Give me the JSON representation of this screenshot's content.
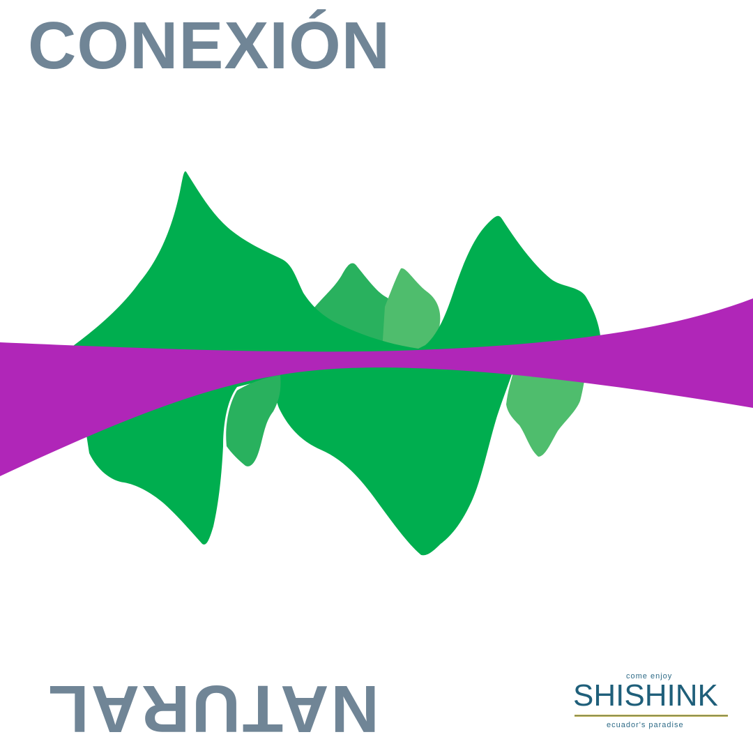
{
  "headline": {
    "top": "CONEXIÓN",
    "bottom_mirrored": "NATURAL"
  },
  "logo": {
    "tagline_top": "come enjoy",
    "wordmark": "SHISHINK",
    "tagline_bottom": "ecuador's paradise"
  },
  "colors": {
    "text": "#708596",
    "green_primary": "#00ae4f",
    "green_secondary": "#29b15e",
    "green_light": "#4fbd6d",
    "magenta": "#b026b8",
    "logo_blue": "#1f5f7a"
  }
}
